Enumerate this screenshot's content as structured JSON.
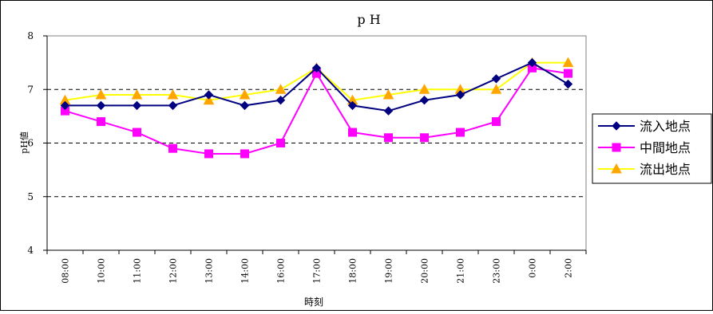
{
  "chart_data": {
    "type": "line",
    "title": "p H",
    "xlabel": "時刻",
    "ylabel": "pH値",
    "ylim": [
      4,
      8
    ],
    "yticks": [
      "4",
      "5",
      "6",
      "7",
      "8"
    ],
    "grid": "horizontal dashed",
    "legend_position": "right",
    "categories": [
      "08:00",
      "10:00",
      "11:00",
      "12:00",
      "13:00",
      "14:00",
      "16:00",
      "17:00",
      "18:00",
      "19:00",
      "20:00",
      "21:00",
      "23:00",
      "0:00",
      "2:00"
    ],
    "series": [
      {
        "name": "流入地点",
        "color": "#000080",
        "marker": "diamond",
        "values": [
          6.7,
          6.7,
          6.7,
          6.7,
          6.9,
          6.7,
          6.8,
          7.4,
          6.7,
          6.6,
          6.8,
          6.9,
          7.2,
          7.5,
          7.1
        ]
      },
      {
        "name": "中間地点",
        "color": "#ff00ff",
        "marker": "square",
        "values": [
          6.6,
          6.4,
          6.2,
          5.9,
          5.8,
          5.8,
          6.0,
          7.3,
          6.2,
          6.1,
          6.1,
          6.2,
          6.4,
          7.4,
          7.3
        ]
      },
      {
        "name": "流出地点",
        "color": "#ffff00",
        "marker_color": "#ffa500",
        "marker": "triangle",
        "values": [
          6.8,
          6.9,
          6.9,
          6.9,
          6.8,
          6.9,
          7.0,
          7.4,
          6.8,
          6.9,
          7.0,
          7.0,
          7.0,
          7.5,
          7.5
        ]
      }
    ]
  }
}
